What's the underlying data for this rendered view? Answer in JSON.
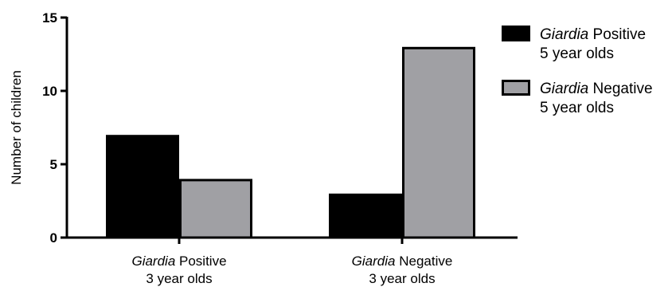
{
  "chart_data": {
    "type": "bar",
    "title": "",
    "ylabel": "Number of children",
    "xlabel": "",
    "ylim": [
      0,
      15
    ],
    "yticks": [
      0,
      5,
      10,
      15
    ],
    "grid": false,
    "legend_position": "top-right",
    "categories": [
      {
        "italic": "Giardia",
        "rest": " Positive",
        "line2": "3 year olds"
      },
      {
        "italic": "Giardia",
        "rest": " Negative",
        "line2": "3 year olds"
      }
    ],
    "series": [
      {
        "italic": "Giardia",
        "rest": " Positive",
        "line2": "5 year olds",
        "color": "#000000",
        "values": [
          7,
          3
        ]
      },
      {
        "italic": "Giardia",
        "rest": " Negative",
        "line2": "5 year olds",
        "color": "#a0a0a4",
        "values": [
          4,
          13
        ]
      }
    ]
  }
}
